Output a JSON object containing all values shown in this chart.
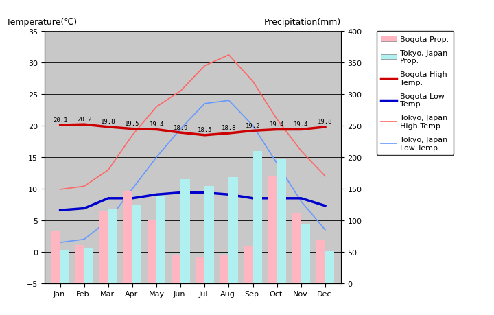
{
  "months": [
    "Jan.",
    "Feb.",
    "Mar.",
    "Apr.",
    "May",
    "Jun.",
    "Jul.",
    "Aug.",
    "Sep.",
    "Oct.",
    "Nov.",
    "Dec."
  ],
  "bogota_precip": [
    84,
    61,
    114,
    147,
    100,
    45,
    41,
    45,
    60,
    170,
    112,
    70
  ],
  "tokyo_precip": [
    52,
    56,
    117,
    125,
    138,
    165,
    154,
    168,
    210,
    197,
    93,
    51
  ],
  "bogota_high": [
    20.1,
    20.2,
    19.8,
    19.5,
    19.4,
    18.9,
    18.5,
    18.8,
    19.2,
    19.4,
    19.4,
    19.8
  ],
  "bogota_low": [
    6.6,
    6.9,
    8.5,
    8.5,
    9.1,
    9.4,
    9.4,
    9.1,
    8.5,
    8.5,
    8.5,
    7.3
  ],
  "tokyo_high": [
    9.9,
    10.4,
    13.0,
    18.5,
    23.0,
    25.5,
    29.5,
    31.2,
    27.0,
    21.0,
    16.0,
    12.0
  ],
  "tokyo_low": [
    1.5,
    2.0,
    5.0,
    10.0,
    15.0,
    19.5,
    23.5,
    24.0,
    20.0,
    14.0,
    8.0,
    3.5
  ],
  "bogota_high_labels": [
    "20.1",
    "20.2",
    "19.8",
    "19.5",
    "19.4",
    "18.9",
    "18.5",
    "18.8",
    "19.2",
    "19.4",
    "19.4",
    "19.8"
  ],
  "temp_ylim": [
    -5,
    35
  ],
  "precip_ylim": [
    0,
    400
  ],
  "temp_yticks": [
    -5,
    0,
    5,
    10,
    15,
    20,
    25,
    30,
    35
  ],
  "precip_yticks": [
    0,
    50,
    100,
    150,
    200,
    250,
    300,
    350,
    400
  ],
  "bg_color": "#c8c8c8",
  "plot_bg": "#c8c8c8",
  "bogota_precip_color": "#ffb6c1",
  "tokyo_precip_color": "#b0f0f0",
  "bogota_high_color": "#cc0000",
  "bogota_low_color": "#0000cc",
  "tokyo_high_color": "#ff6666",
  "tokyo_low_color": "#6699ff",
  "title_left": "Temperature(℃)",
  "title_right": "Precipitation(mm)",
  "figsize": [
    7.2,
    4.6
  ],
  "dpi": 100
}
